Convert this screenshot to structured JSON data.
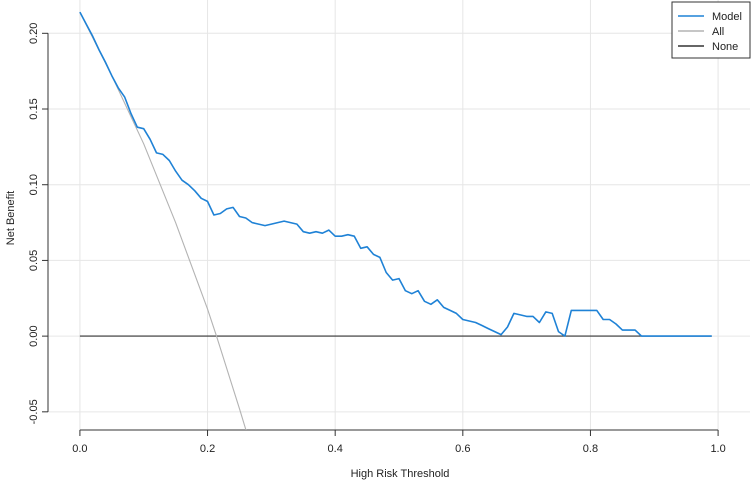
{
  "chart_data": {
    "type": "line",
    "title": "",
    "xlabel": "High Risk Threshold",
    "ylabel": "Net Benefit",
    "xlim": [
      -0.05,
      1.05
    ],
    "ylim": [
      -0.062,
      0.222
    ],
    "x_ticks": [
      0.0,
      0.2,
      0.4,
      0.6,
      0.8,
      1.0
    ],
    "x_tick_labels": [
      "0.0",
      "0.2",
      "0.4",
      "0.6",
      "0.8",
      "1.0"
    ],
    "y_ticks": [
      -0.05,
      0.0,
      0.05,
      0.1,
      0.15,
      0.2
    ],
    "y_tick_labels": [
      "-0.05",
      "0.00",
      "0.05",
      "0.10",
      "0.15",
      "0.20"
    ],
    "grid": true,
    "legend_position": "top-right",
    "series": [
      {
        "name": "Model",
        "color": "#1f82d6",
        "x": [
          0.0,
          0.01,
          0.02,
          0.03,
          0.04,
          0.05,
          0.06,
          0.07,
          0.08,
          0.09,
          0.1,
          0.11,
          0.12,
          0.13,
          0.14,
          0.15,
          0.16,
          0.17,
          0.18,
          0.19,
          0.2,
          0.21,
          0.22,
          0.23,
          0.24,
          0.25,
          0.26,
          0.27,
          0.28,
          0.29,
          0.3,
          0.31,
          0.32,
          0.33,
          0.34,
          0.35,
          0.36,
          0.37,
          0.38,
          0.39,
          0.4,
          0.41,
          0.42,
          0.43,
          0.44,
          0.45,
          0.46,
          0.47,
          0.48,
          0.49,
          0.5,
          0.51,
          0.52,
          0.53,
          0.54,
          0.55,
          0.56,
          0.57,
          0.58,
          0.59,
          0.6,
          0.61,
          0.62,
          0.63,
          0.64,
          0.65,
          0.66,
          0.67,
          0.68,
          0.69,
          0.7,
          0.71,
          0.72,
          0.73,
          0.74,
          0.75,
          0.76,
          0.77,
          0.78,
          0.79,
          0.8,
          0.81,
          0.82,
          0.83,
          0.84,
          0.85,
          0.86,
          0.87,
          0.88,
          0.89,
          0.9,
          0.91,
          0.92,
          0.93,
          0.94,
          0.95,
          0.96,
          0.97,
          0.98,
          0.99
        ],
        "values": [
          0.214,
          0.206,
          0.198,
          0.189,
          0.181,
          0.172,
          0.164,
          0.158,
          0.147,
          0.138,
          0.137,
          0.13,
          0.121,
          0.12,
          0.116,
          0.109,
          0.103,
          0.1,
          0.096,
          0.091,
          0.089,
          0.08,
          0.081,
          0.084,
          0.085,
          0.079,
          0.078,
          0.075,
          0.074,
          0.073,
          0.074,
          0.075,
          0.076,
          0.075,
          0.074,
          0.069,
          0.068,
          0.069,
          0.068,
          0.07,
          0.066,
          0.066,
          0.067,
          0.066,
          0.058,
          0.059,
          0.054,
          0.052,
          0.042,
          0.037,
          0.038,
          0.03,
          0.028,
          0.03,
          0.023,
          0.021,
          0.024,
          0.019,
          0.017,
          0.015,
          0.011,
          0.01,
          0.009,
          0.007,
          0.005,
          0.003,
          0.001,
          0.006,
          0.015,
          0.014,
          0.013,
          0.013,
          0.009,
          0.016,
          0.015,
          0.003,
          0.0,
          0.017,
          0.017,
          0.017,
          0.017,
          0.017,
          0.011,
          0.011,
          0.008,
          0.004,
          0.004,
          0.004,
          0.0,
          0.0,
          0.0,
          0.0,
          0.0,
          0.0,
          0.0,
          0.0,
          0.0,
          0.0,
          0.0,
          0.0
        ]
      },
      {
        "name": "All",
        "color": "#b3b3b3",
        "x": [
          0.0,
          0.05,
          0.1,
          0.15,
          0.2,
          0.214,
          0.25,
          0.263
        ],
        "values": [
          0.214,
          0.172,
          0.127,
          0.075,
          0.018,
          0.0,
          -0.048,
          -0.066
        ]
      },
      {
        "name": "None",
        "color": "#333333",
        "x": [
          0.0,
          0.99
        ],
        "values": [
          0.0,
          0.0
        ]
      }
    ]
  }
}
